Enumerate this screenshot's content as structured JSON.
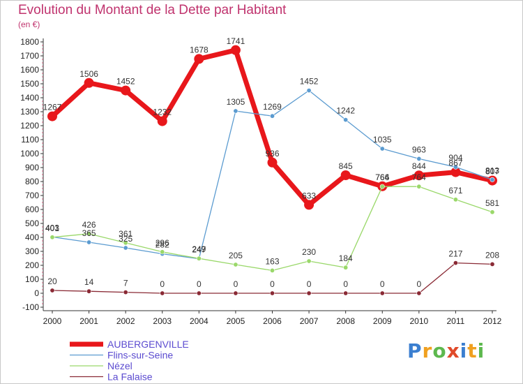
{
  "title": "Evolution du Montant de la Dette par Habitant",
  "subtitle": "(en €)",
  "logo": {
    "text": "Proxiti",
    "letters": [
      {
        "ch": "P",
        "color": "#3b7fd0"
      },
      {
        "ch": "r",
        "color": "#f0a020"
      },
      {
        "ch": "o",
        "color": "#5db84e"
      },
      {
        "ch": "x",
        "color": "#e04a2a"
      },
      {
        "ch": "i",
        "color": "#3b7fd0"
      },
      {
        "ch": "t",
        "color": "#f0a020"
      },
      {
        "ch": "i",
        "color": "#5db84e"
      }
    ]
  },
  "chart_data": {
    "type": "line",
    "x": [
      "2000",
      "2001",
      "2002",
      "2003",
      "2004",
      "2005",
      "2006",
      "2007",
      "2008",
      "2009",
      "2010",
      "2011",
      "2012"
    ],
    "ylim": [
      -100,
      1800
    ],
    "yticks": [
      -100,
      0,
      100,
      200,
      300,
      400,
      500,
      600,
      700,
      800,
      900,
      1000,
      1100,
      1200,
      1300,
      1400,
      1500,
      1600,
      1700,
      1800
    ],
    "grid": false,
    "legend_position": "bottom-left",
    "series": [
      {
        "name": "AUBERGENVILLE",
        "color": "#e8171b",
        "width": 7,
        "marker": 7,
        "values": [
          1267,
          1506,
          1452,
          1232,
          1678,
          1741,
          936,
          633,
          845,
          766,
          844,
          867,
          807
        ]
      },
      {
        "name": "Flins-sur-Seine",
        "color": "#5b9bd0",
        "width": 1.3,
        "marker": 3.2,
        "values": [
          403,
          365,
          325,
          282,
          247,
          1305,
          1269,
          1452,
          1242,
          1035,
          963,
          904,
          813
        ]
      },
      {
        "name": "Nézel",
        "color": "#9ad86a",
        "width": 1.3,
        "marker": 3.2,
        "values": [
          401,
          426,
          361,
          296,
          249,
          205,
          163,
          230,
          184,
          764,
          764,
          671,
          581
        ]
      },
      {
        "name": "La Falaise",
        "color": "#8a2a35",
        "width": 1.3,
        "marker": 3.2,
        "values": [
          20,
          14,
          7,
          0,
          0,
          0,
          0,
          0,
          0,
          0,
          0,
          217,
          208
        ]
      }
    ]
  }
}
